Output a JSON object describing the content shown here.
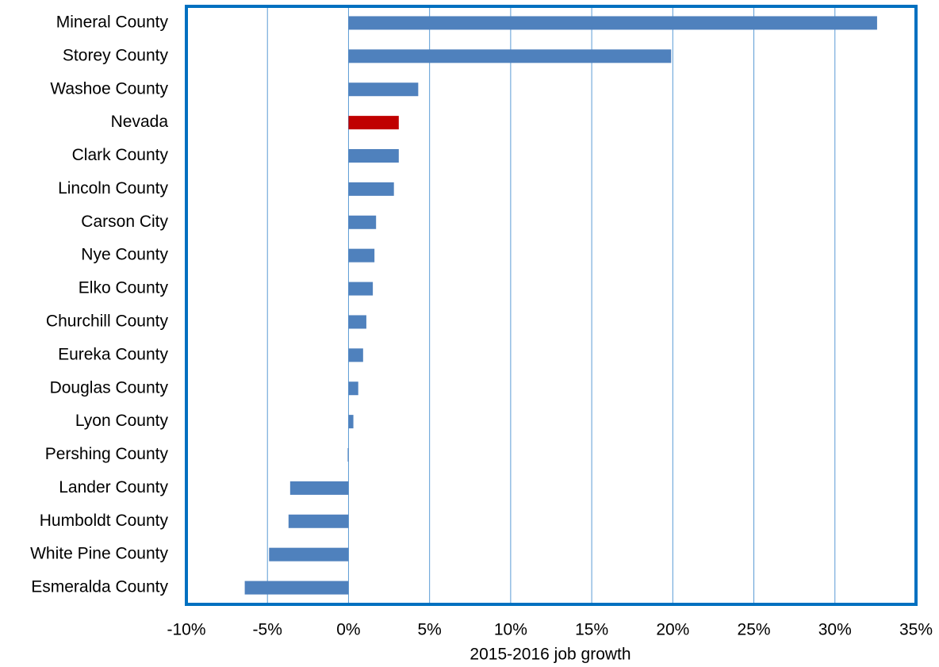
{
  "chart_data": {
    "type": "barh",
    "xlabel": "2015-2016 job growth",
    "categories": [
      "Mineral County",
      "Storey County",
      "Washoe County",
      "Nevada",
      "Clark County",
      "Lincoln County",
      "Carson City",
      "Nye County",
      "Elko County",
      "Churchill County",
      "Eureka County",
      "Douglas County",
      "Lyon County",
      "Pershing County",
      "Lander County",
      "Humboldt County",
      "White Pine County",
      "Esmeralda County"
    ],
    "values": [
      32.6,
      19.9,
      4.3,
      3.1,
      3.1,
      2.8,
      1.7,
      1.6,
      1.5,
      1.1,
      0.9,
      0.6,
      0.3,
      -0.05,
      -3.6,
      -3.7,
      -4.9,
      -6.4
    ],
    "colors": [
      "#4f81bd",
      "#4f81bd",
      "#4f81bd",
      "#c00000",
      "#4f81bd",
      "#4f81bd",
      "#4f81bd",
      "#4f81bd",
      "#4f81bd",
      "#4f81bd",
      "#4f81bd",
      "#4f81bd",
      "#4f81bd",
      "#4f81bd",
      "#4f81bd",
      "#4f81bd",
      "#4f81bd",
      "#4f81bd"
    ],
    "xlim": [
      -10,
      35
    ],
    "xticks": [
      {
        "value": -10,
        "label": "-10%"
      },
      {
        "value": -5,
        "label": "-5%"
      },
      {
        "value": 0,
        "label": "0%"
      },
      {
        "value": 5,
        "label": "5%"
      },
      {
        "value": 10,
        "label": "10%"
      },
      {
        "value": 15,
        "label": "15%"
      },
      {
        "value": 20,
        "label": "20%"
      },
      {
        "value": 25,
        "label": "25%"
      },
      {
        "value": 30,
        "label": "30%"
      },
      {
        "value": 35,
        "label": "35%"
      }
    ],
    "grid": true,
    "grid_color": "#5b9bd5",
    "frame_color": "#0070c0"
  }
}
